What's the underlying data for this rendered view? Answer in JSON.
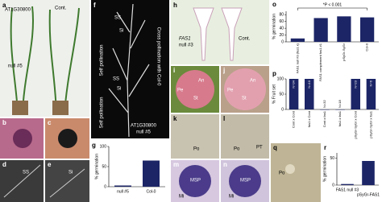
{
  "panels": {
    "a": {
      "letter": "a",
      "labels": [
        "AT1G30800",
        "null #5",
        "Cont."
      ]
    },
    "b": {
      "letter": "b"
    },
    "c": {
      "letter": "c"
    },
    "d": {
      "letter": "d",
      "labels": [
        "SS"
      ]
    },
    "e": {
      "letter": "e",
      "labels": [
        "Si"
      ]
    },
    "f": {
      "letter": "f",
      "labels": [
        "SS",
        "Si",
        "SS",
        "Si",
        "Self pollination",
        "Self pollination",
        "Cross pollination with Col-0",
        "AT1G30800",
        "null #5"
      ]
    },
    "h": {
      "letter": "h",
      "labels": [
        "FAS1",
        "null #3",
        "Cont."
      ]
    },
    "i": {
      "letter": "i",
      "labels": [
        "An",
        "Pe",
        "St"
      ]
    },
    "j": {
      "letter": "j",
      "labels": [
        "Pe",
        "An",
        "St"
      ]
    },
    "k": {
      "letter": "k",
      "labels": [
        "Po"
      ]
    },
    "l": {
      "letter": "l",
      "labels": [
        "Po",
        "PT"
      ]
    },
    "m": {
      "letter": "m",
      "labels": [
        "MSP",
        "Mi"
      ]
    },
    "n": {
      "letter": "n",
      "labels": [
        "MSP",
        "Mi"
      ]
    },
    "q": {
      "letter": "q",
      "labels": [
        "Po"
      ]
    }
  },
  "charts": {
    "g": {
      "letter": "g",
      "type": "bar",
      "y_label": "% germination",
      "categories": [
        "null #5",
        "Col-0"
      ],
      "values": [
        3,
        65
      ],
      "color": "#1c2566",
      "ylim": [
        0,
        100
      ],
      "yticks": [
        0,
        50,
        100
      ]
    },
    "o": {
      "letter": "o",
      "type": "bar",
      "y_label": "% germination",
      "annotation": "*P < 0.001",
      "categories": [
        "FAS1 null #3 (fas1 x)",
        "FAS1 complement fas1 #1",
        "pSyGr-SyGr",
        "Col-0"
      ],
      "values": [
        10,
        70,
        75,
        72
      ],
      "color": "#1c2566",
      "ylim": [
        0,
        90
      ],
      "yticks": [
        0,
        20,
        40,
        60,
        80
      ]
    },
    "p": {
      "letter": "p",
      "type": "bar",
      "y_label": "% Fruit set",
      "categories": [
        "Cont x Cont",
        "fas1 x Cont",
        "Cont x fas1",
        "fas1 x fas1",
        "pSyGr-SyGr x Cont",
        "pSyGr-SyGr x fas1"
      ],
      "values": [
        100,
        100,
        0,
        0,
        100,
        100
      ],
      "n_labels": [
        "N=34",
        "N=10",
        "N=32",
        "N=18",
        "N=23",
        "N=6"
      ],
      "color": "#1c2566",
      "ylim": [
        0,
        100
      ],
      "yticks": [
        0,
        50,
        100
      ]
    },
    "r": {
      "letter": "r",
      "type": "bar",
      "y_label": "% germination",
      "categories": [
        "FAS1 null #3",
        "pSyGr-FAS1"
      ],
      "values": [
        2,
        45
      ],
      "color": "#1c2566",
      "ylim": [
        0,
        60
      ],
      "yticks": [
        0,
        50
      ]
    }
  }
}
